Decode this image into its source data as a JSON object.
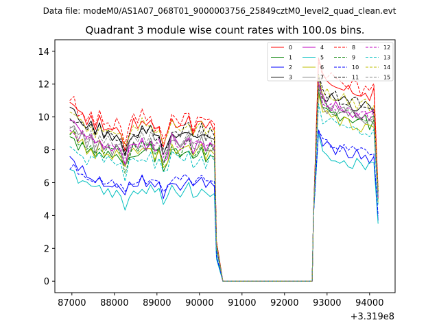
{
  "chart_data": {
    "type": "line",
    "suptitle": "Data file: modeM0/AS1A07_068T01_9000003756_25849cztM0_level2_quad_clean.evt",
    "title": "Quadrant 3 module wise count rates with 100.0s bins.",
    "x_offset_label": "+3.319e8",
    "xlim": [
      86600,
      94600
    ],
    "ylim": [
      -0.7,
      14.7
    ],
    "x_ticks": [
      87000,
      88000,
      89000,
      90000,
      91000,
      92000,
      93000,
      94000
    ],
    "x_tick_labels": [
      "87000",
      "88000",
      "89000",
      "90000",
      "91000",
      "92000",
      "93000",
      "94000"
    ],
    "y_ticks": [
      0,
      2,
      4,
      6,
      8,
      10,
      12,
      14
    ],
    "y_tick_labels": [
      "0",
      "2",
      "4",
      "6",
      "8",
      "10",
      "12",
      "14"
    ],
    "gap": {
      "drop_start": 90400,
      "zero_start": 90550,
      "zero_end": 92650,
      "rise_end": 92800
    },
    "segments": {
      "pre": {
        "x_start": 86950,
        "x_step": 100,
        "count": 35
      },
      "post": {
        "x_start": 92800,
        "x_step": 100,
        "count": 15
      }
    },
    "legend": {
      "location": "upper right",
      "ncol": 4
    },
    "series": [
      {
        "name": "0",
        "color": "#ff0000",
        "dash": "solid",
        "pre_level": 9.5,
        "post_level": 11.8,
        "pre_start": 10.9,
        "post_peak": 13.6,
        "post_end": 5.5
      },
      {
        "name": "1",
        "color": "#008000",
        "dash": "solid",
        "pre_level": 7.8,
        "post_level": 10.0,
        "pre_start": 8.8,
        "post_peak": 11.5,
        "post_end": 5.5
      },
      {
        "name": "2",
        "color": "#0000ff",
        "dash": "solid",
        "pre_level": 5.9,
        "post_level": 7.9,
        "pre_start": 7.6,
        "post_peak": 9.2,
        "post_end": 3.7
      },
      {
        "name": "3",
        "color": "#000000",
        "dash": "solid",
        "pre_level": 8.9,
        "post_level": 10.8,
        "pre_start": 10.6,
        "post_peak": 12.5,
        "post_end": 5.0
      },
      {
        "name": "4",
        "color": "#bf00bf",
        "dash": "solid",
        "pre_level": 8.3,
        "post_level": 10.4,
        "pre_start": 9.8,
        "post_peak": 12.0,
        "post_end": 5.2
      },
      {
        "name": "5",
        "color": "#00bfbf",
        "dash": "solid",
        "pre_level": 5.4,
        "post_level": 7.3,
        "pre_start": 6.8,
        "post_peak": 9.0,
        "post_end": 3.5
      },
      {
        "name": "6",
        "color": "#bfbf00",
        "dash": "solid",
        "pre_level": 7.9,
        "post_level": 9.7,
        "pre_start": 9.0,
        "post_peak": 11.4,
        "post_end": 4.8
      },
      {
        "name": "7",
        "color": "#808080",
        "dash": "solid",
        "pre_level": 8.2,
        "post_level": 10.1,
        "pre_start": 9.3,
        "post_peak": 11.8,
        "post_end": 5.1
      },
      {
        "name": "8",
        "color": "#ff0000",
        "dash": "dashed",
        "pre_level": 9.8,
        "post_level": 12.0,
        "pre_start": 11.0,
        "post_peak": 13.5,
        "post_end": 5.6
      },
      {
        "name": "9",
        "color": "#008000",
        "dash": "dashed",
        "pre_level": 8.0,
        "post_level": 10.2,
        "pre_start": 8.9,
        "post_peak": 11.7,
        "post_end": 5.3
      },
      {
        "name": "10",
        "color": "#0000ff",
        "dash": "dashed",
        "pre_level": 6.1,
        "post_level": 8.0,
        "pre_start": 6.8,
        "post_peak": 9.2,
        "post_end": 4.0
      },
      {
        "name": "11",
        "color": "#000000",
        "dash": "dashed",
        "pre_level": 9.0,
        "post_level": 11.0,
        "pre_start": 9.9,
        "post_peak": 12.6,
        "post_end": 5.4
      },
      {
        "name": "12",
        "color": "#bf00bf",
        "dash": "dashed",
        "pre_level": 8.4,
        "post_level": 10.3,
        "pre_start": 9.2,
        "post_peak": 12.1,
        "post_end": 5.1
      },
      {
        "name": "13",
        "color": "#00bfbf",
        "dash": "dashed",
        "pre_level": 7.4,
        "post_level": 9.3,
        "pre_start": 8.2,
        "post_peak": 10.8,
        "post_end": 4.6
      },
      {
        "name": "14",
        "color": "#bfbf00",
        "dash": "dashed",
        "pre_level": 9.3,
        "post_level": 11.0,
        "pre_start": 10.3,
        "post_peak": 12.6,
        "post_end": 5.5
      },
      {
        "name": "15",
        "color": "#808080",
        "dash": "dashed",
        "pre_level": 8.6,
        "post_level": 10.4,
        "pre_start": 9.4,
        "post_peak": 11.9,
        "post_end": 5.2
      }
    ]
  }
}
